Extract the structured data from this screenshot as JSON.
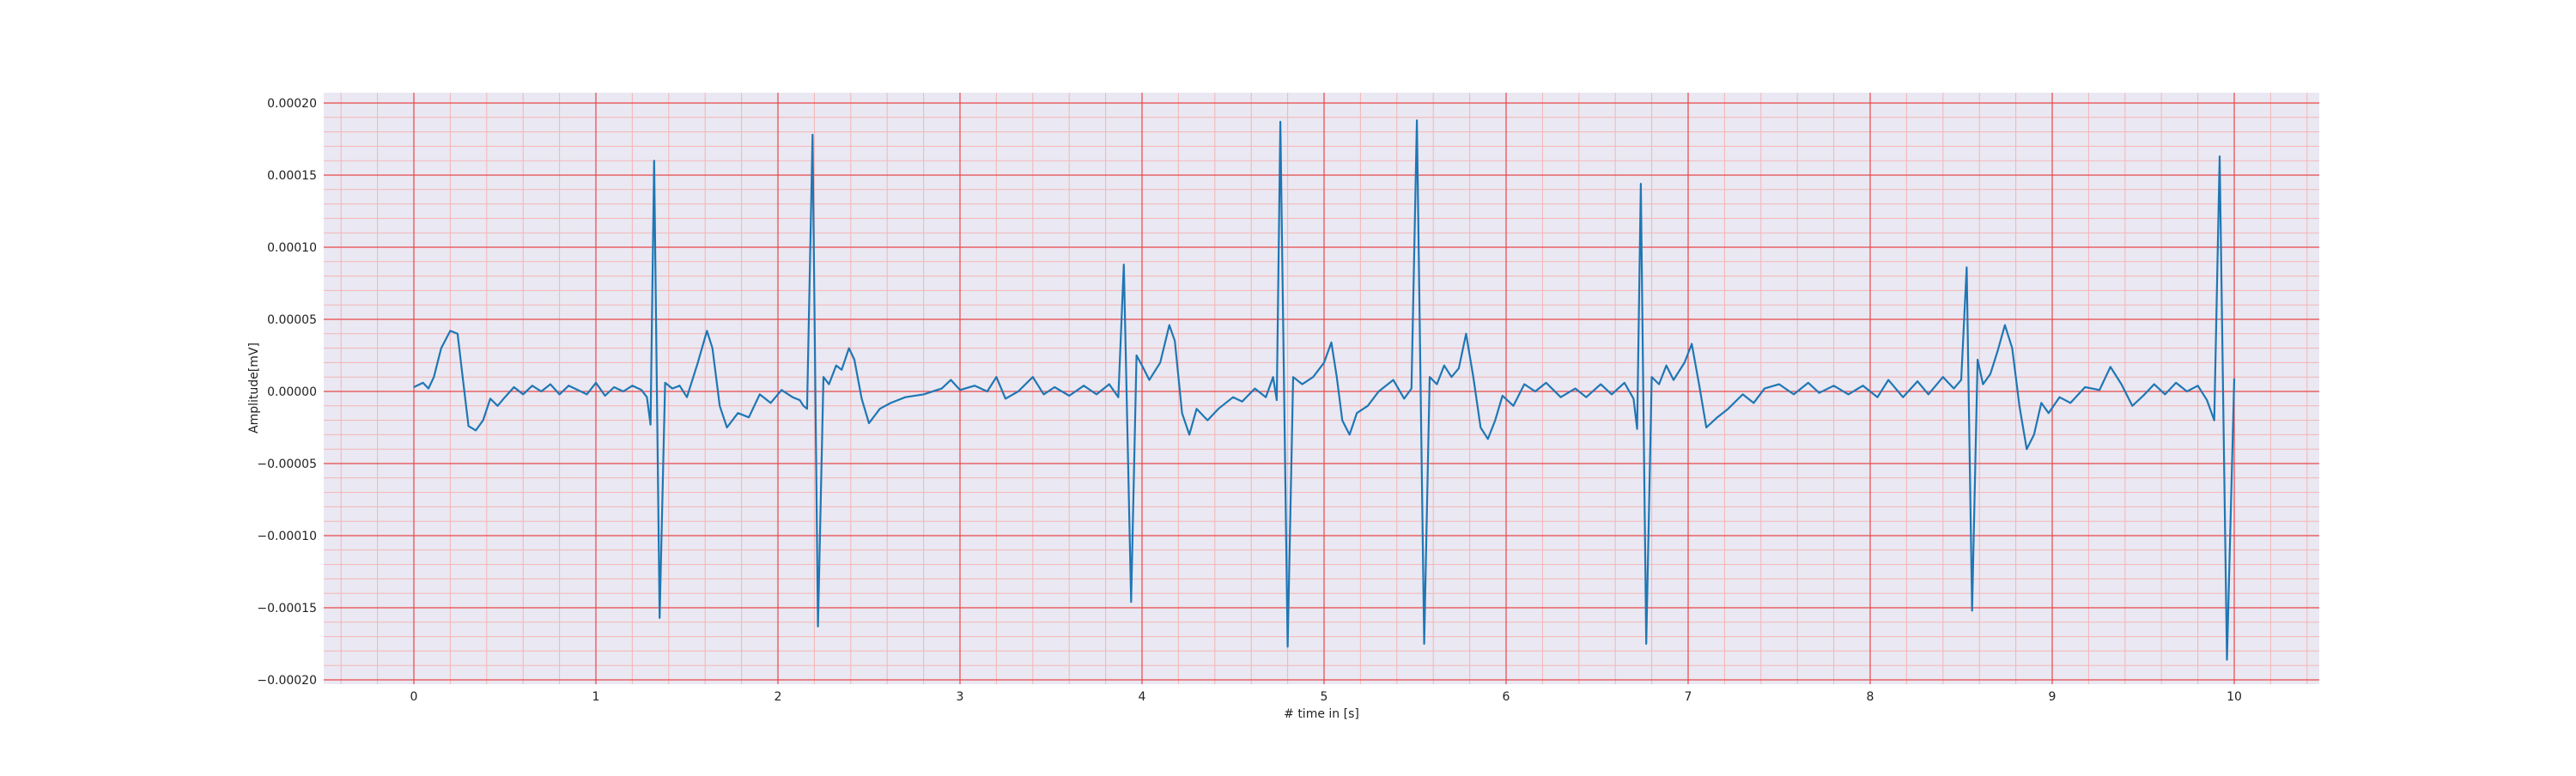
{
  "chart_data": {
    "type": "line",
    "title": "",
    "xlabel": "# time in [s]",
    "ylabel": "Amplitude[mV]",
    "xlim": [
      -0.5,
      10.5
    ],
    "ylim": [
      -0.0002,
      0.0002
    ],
    "x_ticks": [
      0,
      1,
      2,
      3,
      4,
      5,
      6,
      7,
      8,
      9,
      10
    ],
    "x_tick_labels": [
      "0",
      "1",
      "2",
      "3",
      "4",
      "5",
      "6",
      "7",
      "8",
      "9",
      "10"
    ],
    "y_ticks": [
      -0.0002,
      -0.00015,
      -0.0001,
      -5e-05,
      0,
      5e-05,
      0.0001,
      0.00015,
      0.0002
    ],
    "y_tick_labels": [
      "−0.00020",
      "−0.00015",
      "−0.00010",
      "−0.00005",
      "0.00000",
      "0.00005",
      "0.00010",
      "0.00015",
      "0.00020"
    ],
    "grid": true,
    "minor_grid": true,
    "legend": "none",
    "series": [
      {
        "color": "#1f77b4",
        "points": [
          [
            0.0,
            3e-06
          ],
          [
            0.05,
            6e-06
          ],
          [
            0.08,
            2e-06
          ],
          [
            0.11,
            1e-05
          ],
          [
            0.15,
            3e-05
          ],
          [
            0.2,
            4.2e-05
          ],
          [
            0.24,
            4e-05
          ],
          [
            0.27,
            8e-06
          ],
          [
            0.3,
            -2.4e-05
          ],
          [
            0.34,
            -2.7e-05
          ],
          [
            0.38,
            -2e-05
          ],
          [
            0.42,
            -5e-06
          ],
          [
            0.46,
            -1e-05
          ],
          [
            0.5,
            -4e-06
          ],
          [
            0.55,
            3e-06
          ],
          [
            0.6,
            -2e-06
          ],
          [
            0.65,
            4e-06
          ],
          [
            0.7,
            0.0
          ],
          [
            0.75,
            5e-06
          ],
          [
            0.8,
            -2e-06
          ],
          [
            0.85,
            4e-06
          ],
          [
            0.9,
            1e-06
          ],
          [
            0.95,
            -2e-06
          ],
          [
            1.0,
            6e-06
          ],
          [
            1.05,
            -3e-06
          ],
          [
            1.1,
            3e-06
          ],
          [
            1.15,
            0.0
          ],
          [
            1.2,
            4e-06
          ],
          [
            1.25,
            1e-06
          ],
          [
            1.28,
            -4e-06
          ],
          [
            1.3,
            -2.3e-05
          ],
          [
            1.32,
            0.00016
          ],
          [
            1.35,
            -0.000157
          ],
          [
            1.38,
            6e-06
          ],
          [
            1.42,
            2e-06
          ],
          [
            1.46,
            4e-06
          ],
          [
            1.5,
            -4e-06
          ],
          [
            1.56,
            2e-05
          ],
          [
            1.61,
            4.2e-05
          ],
          [
            1.64,
            3e-05
          ],
          [
            1.68,
            -1e-05
          ],
          [
            1.72,
            -2.5e-05
          ],
          [
            1.78,
            -1.5e-05
          ],
          [
            1.84,
            -1.8e-05
          ],
          [
            1.9,
            -2e-06
          ],
          [
            1.96,
            -8e-06
          ],
          [
            2.02,
            1e-06
          ],
          [
            2.08,
            -4e-06
          ],
          [
            2.12,
            -6e-06
          ],
          [
            2.14,
            -1e-05
          ],
          [
            2.16,
            -1.2e-05
          ],
          [
            2.19,
            0.000178
          ],
          [
            2.22,
            -0.000163
          ],
          [
            2.25,
            1e-05
          ],
          [
            2.28,
            5e-06
          ],
          [
            2.32,
            1.8e-05
          ],
          [
            2.35,
            1.5e-05
          ],
          [
            2.39,
            3e-05
          ],
          [
            2.42,
            2.2e-05
          ],
          [
            2.46,
            -5e-06
          ],
          [
            2.5,
            -2.2e-05
          ],
          [
            2.56,
            -1.2e-05
          ],
          [
            2.62,
            -8e-06
          ],
          [
            2.7,
            -4e-06
          ],
          [
            2.8,
            -2e-06
          ],
          [
            2.9,
            2e-06
          ],
          [
            2.95,
            8e-06
          ],
          [
            3.0,
            1e-06
          ],
          [
            3.08,
            4e-06
          ],
          [
            3.15,
            0.0
          ],
          [
            3.2,
            1e-05
          ],
          [
            3.25,
            -5e-06
          ],
          [
            3.32,
            0.0
          ],
          [
            3.4,
            1e-05
          ],
          [
            3.46,
            -2e-06
          ],
          [
            3.52,
            3e-06
          ],
          [
            3.6,
            -3e-06
          ],
          [
            3.68,
            4e-06
          ],
          [
            3.75,
            -2e-06
          ],
          [
            3.82,
            5e-06
          ],
          [
            3.87,
            -4e-06
          ],
          [
            3.9,
            8.8e-05
          ],
          [
            3.94,
            -0.000146
          ],
          [
            3.97,
            2.5e-05
          ],
          [
            4.0,
            1.8e-05
          ],
          [
            4.04,
            8e-06
          ],
          [
            4.1,
            2e-05
          ],
          [
            4.15,
            4.6e-05
          ],
          [
            4.18,
            3.5e-05
          ],
          [
            4.22,
            -1.5e-05
          ],
          [
            4.26,
            -3e-05
          ],
          [
            4.3,
            -1.2e-05
          ],
          [
            4.36,
            -2e-05
          ],
          [
            4.42,
            -1.2e-05
          ],
          [
            4.5,
            -4e-06
          ],
          [
            4.55,
            -7e-06
          ],
          [
            4.62,
            2e-06
          ],
          [
            4.68,
            -4e-06
          ],
          [
            4.72,
            1e-05
          ],
          [
            4.74,
            -6e-06
          ],
          [
            4.76,
            0.000187
          ],
          [
            4.8,
            -0.000177
          ],
          [
            4.83,
            1e-05
          ],
          [
            4.88,
            5e-06
          ],
          [
            4.94,
            1e-05
          ],
          [
            5.0,
            2e-05
          ],
          [
            5.04,
            3.4e-05
          ],
          [
            5.07,
            1e-05
          ],
          [
            5.1,
            -2e-05
          ],
          [
            5.14,
            -3e-05
          ],
          [
            5.18,
            -1.5e-05
          ],
          [
            5.24,
            -1e-05
          ],
          [
            5.3,
            0.0
          ],
          [
            5.38,
            8e-06
          ],
          [
            5.44,
            -5e-06
          ],
          [
            5.48,
            2e-06
          ],
          [
            5.51,
            0.000188
          ],
          [
            5.55,
            -0.000175
          ],
          [
            5.58,
            1e-05
          ],
          [
            5.62,
            5e-06
          ],
          [
            5.66,
            1.8e-05
          ],
          [
            5.7,
            1e-05
          ],
          [
            5.74,
            1.6e-05
          ],
          [
            5.78,
            4e-05
          ],
          [
            5.82,
            1e-05
          ],
          [
            5.86,
            -2.5e-05
          ],
          [
            5.9,
            -3.3e-05
          ],
          [
            5.94,
            -2e-05
          ],
          [
            5.98,
            -3e-06
          ],
          [
            6.04,
            -1e-05
          ],
          [
            6.1,
            5e-06
          ],
          [
            6.16,
            0.0
          ],
          [
            6.22,
            6e-06
          ],
          [
            6.3,
            -4e-06
          ],
          [
            6.38,
            2e-06
          ],
          [
            6.44,
            -4e-06
          ],
          [
            6.52,
            5e-06
          ],
          [
            6.58,
            -2e-06
          ],
          [
            6.65,
            6e-06
          ],
          [
            6.7,
            -5e-06
          ],
          [
            6.72,
            -2.6e-05
          ],
          [
            6.74,
            0.000144
          ],
          [
            6.77,
            -0.000175
          ],
          [
            6.8,
            1e-05
          ],
          [
            6.84,
            5e-06
          ],
          [
            6.88,
            1.8e-05
          ],
          [
            6.92,
            8e-06
          ],
          [
            6.98,
            2e-05
          ],
          [
            7.02,
            3.3e-05
          ],
          [
            7.06,
            5e-06
          ],
          [
            7.1,
            -2.5e-05
          ],
          [
            7.16,
            -1.8e-05
          ],
          [
            7.22,
            -1.2e-05
          ],
          [
            7.3,
            -2e-06
          ],
          [
            7.36,
            -8e-06
          ],
          [
            7.42,
            2e-06
          ],
          [
            7.5,
            5e-06
          ],
          [
            7.58,
            -2e-06
          ],
          [
            7.66,
            6e-06
          ],
          [
            7.72,
            -1e-06
          ],
          [
            7.8,
            4e-06
          ],
          [
            7.88,
            -2e-06
          ],
          [
            7.96,
            4e-06
          ],
          [
            8.04,
            -4e-06
          ],
          [
            8.1,
            8e-06
          ],
          [
            8.18,
            -4e-06
          ],
          [
            8.26,
            7e-06
          ],
          [
            8.32,
            -2e-06
          ],
          [
            8.4,
            1e-05
          ],
          [
            8.46,
            2e-06
          ],
          [
            8.5,
            8e-06
          ],
          [
            8.53,
            8.6e-05
          ],
          [
            8.56,
            -0.000152
          ],
          [
            8.59,
            2.2e-05
          ],
          [
            8.62,
            5e-06
          ],
          [
            8.66,
            1.2e-05
          ],
          [
            8.7,
            2.8e-05
          ],
          [
            8.74,
            4.6e-05
          ],
          [
            8.78,
            3e-05
          ],
          [
            8.82,
            -1e-05
          ],
          [
            8.86,
            -4e-05
          ],
          [
            8.9,
            -3e-05
          ],
          [
            8.94,
            -8e-06
          ],
          [
            8.98,
            -1.5e-05
          ],
          [
            9.04,
            -4e-06
          ],
          [
            9.1,
            -8e-06
          ],
          [
            9.18,
            3e-06
          ],
          [
            9.26,
            1e-06
          ],
          [
            9.32,
            1.7e-05
          ],
          [
            9.38,
            5e-06
          ],
          [
            9.44,
            -1e-05
          ],
          [
            9.5,
            -3e-06
          ],
          [
            9.56,
            5e-06
          ],
          [
            9.62,
            -2e-06
          ],
          [
            9.68,
            6e-06
          ],
          [
            9.74,
            0.0
          ],
          [
            9.8,
            4e-06
          ],
          [
            9.85,
            -6e-06
          ],
          [
            9.89,
            -2e-05
          ],
          [
            9.92,
            0.000163
          ],
          [
            9.96,
            -0.000186
          ],
          [
            10.0,
            9e-06
          ]
        ]
      }
    ]
  }
}
